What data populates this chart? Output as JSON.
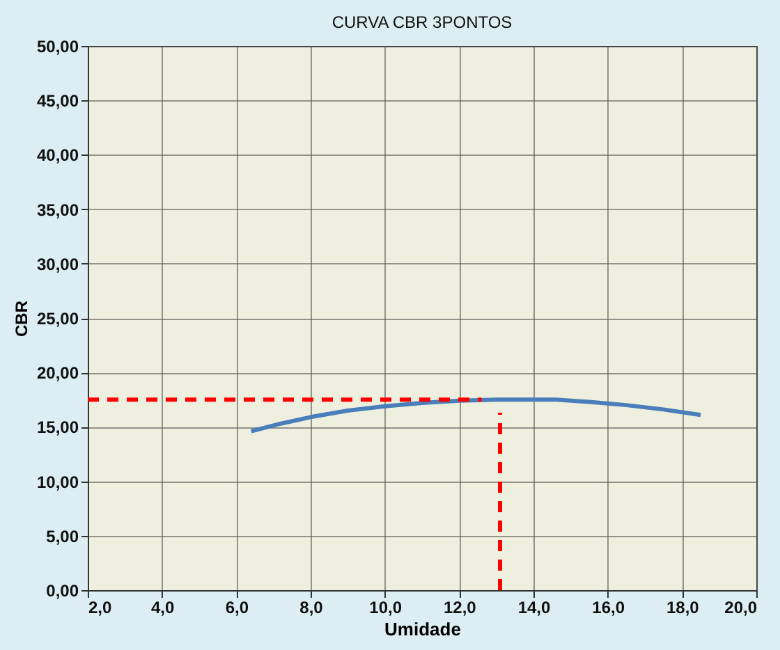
{
  "chart_data": {
    "type": "line",
    "title": "CURVA CBR 3PONTOS",
    "xlabel": "Umidade",
    "ylabel": "CBR",
    "series": [
      {
        "color": "#4a7ebb",
        "x": [
          6.4,
          7.2,
          8.0,
          9.0,
          10.0,
          11.0,
          12.0,
          13.0,
          14.0,
          14.6,
          15.5,
          16.5,
          17.5,
          18.5
        ],
        "values": [
          14.6,
          15.3,
          15.9,
          16.5,
          16.9,
          17.2,
          17.4,
          17.5,
          17.5,
          17.5,
          17.3,
          17.0,
          16.6,
          16.1
        ]
      },
      {
        "color": "#ff0000",
        "line_style": "dashed",
        "x": [
          2.0,
          12.6
        ],
        "values": [
          17.5,
          17.5
        ]
      },
      {
        "color": "#ff0000",
        "line_style": "dashed",
        "x": [
          13.1,
          13.1
        ],
        "values": [
          0.0,
          16.3
        ]
      }
    ],
    "xlim": [
      2,
      20
    ],
    "ylim": [
      0,
      50
    ],
    "xticks": [
      {
        "value": 2,
        "label": "2,0"
      },
      {
        "value": 4,
        "label": "4,0"
      },
      {
        "value": 6,
        "label": "6,0"
      },
      {
        "value": 8,
        "label": "8,0"
      },
      {
        "value": 10,
        "label": "10,0"
      },
      {
        "value": 12,
        "label": "12,0"
      },
      {
        "value": 14,
        "label": "14,0"
      },
      {
        "value": 16,
        "label": "16,0"
      },
      {
        "value": 18,
        "label": "18,0"
      },
      {
        "value": 20,
        "label": "20,0"
      }
    ],
    "yticks": [
      {
        "value": 0,
        "label": "0,00"
      },
      {
        "value": 5,
        "label": "5,00"
      },
      {
        "value": 10,
        "label": "10,00"
      },
      {
        "value": 15,
        "label": "15,00"
      },
      {
        "value": 20,
        "label": "20,00"
      },
      {
        "value": 25,
        "label": "25,00"
      },
      {
        "value": 30,
        "label": "30,00"
      },
      {
        "value": 35,
        "label": "35,00"
      },
      {
        "value": 40,
        "label": "40,00"
      },
      {
        "value": 45,
        "label": "45,00"
      },
      {
        "value": 50,
        "label": "50,00"
      }
    ],
    "grid": true,
    "marker": "none",
    "line_style": "solid"
  }
}
